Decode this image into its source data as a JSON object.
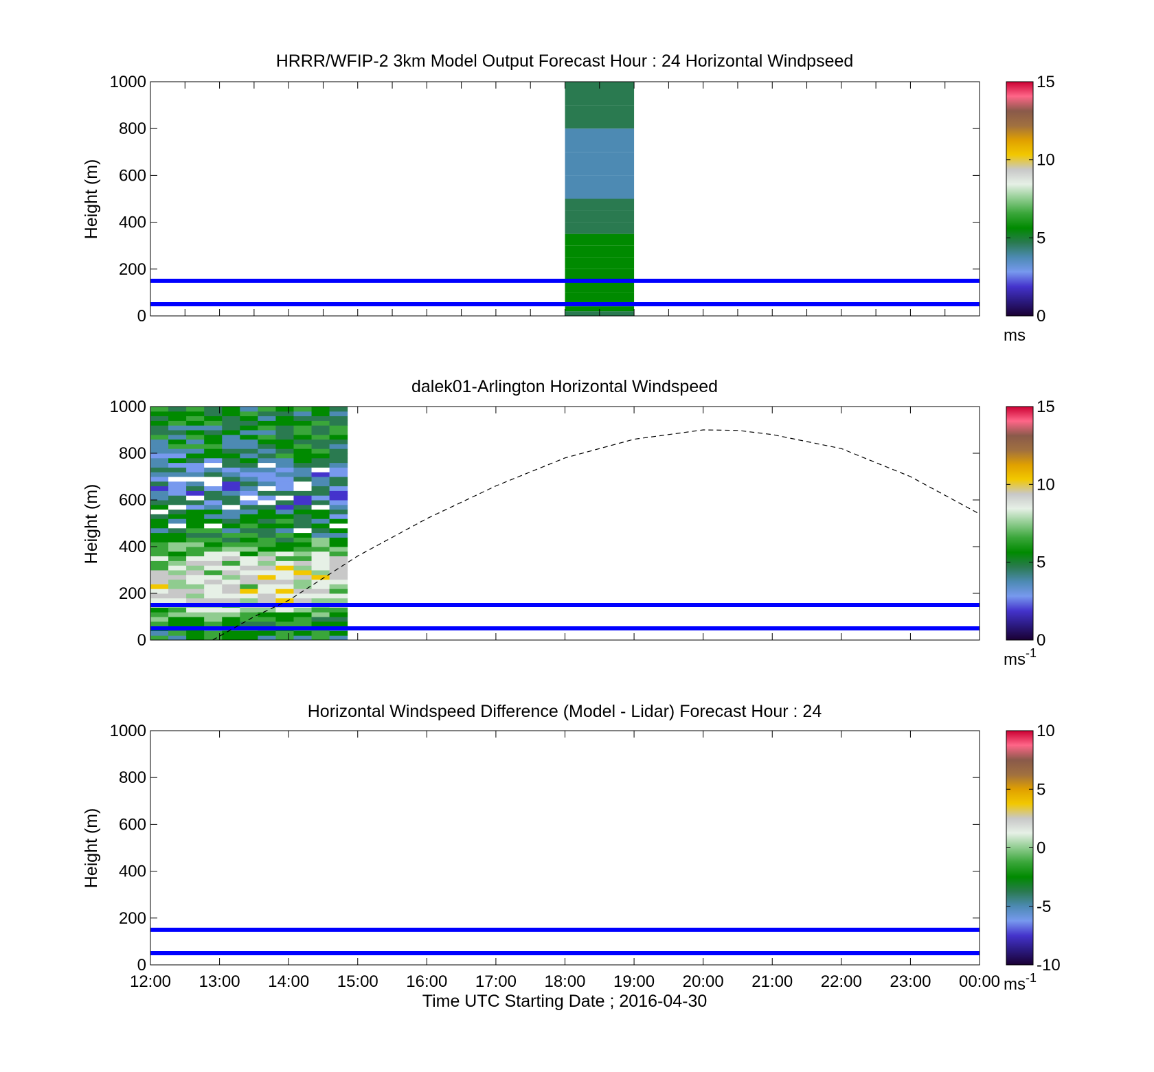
{
  "colors": {
    "reference_lines": "#0000ff",
    "speed_colormap": [
      "#1a0033",
      "#2b1a80",
      "#4433cc",
      "#7799ee",
      "#4d8ab3",
      "#2a7a50",
      "#008a00",
      "#3aa63a",
      "#8fcc8f",
      "#e6f0e6",
      "#c8c8c8",
      "#f2c800",
      "#e0a000",
      "#a07040",
      "#8a5a4a",
      "#ff6688",
      "#cc0033"
    ],
    "no_data": "#ffffff"
  },
  "chart_data": [
    {
      "type": "heatmap",
      "title": "HRRR/WFIP-2 3km Model Output   Forecast Hour : 24 Horizontal Windpseed",
      "ylabel": "Height (m)",
      "xlim": [
        "12:00",
        "00:00"
      ],
      "ylim": [
        0,
        1000
      ],
      "y_ticks": [
        "0",
        "200",
        "400",
        "600",
        "800",
        "1000"
      ],
      "x_ticks": [
        "12:00",
        "13:00",
        "14:00",
        "15:00",
        "16:00",
        "17:00",
        "18:00",
        "19:00",
        "20:00",
        "21:00",
        "22:00",
        "23:00",
        "00:00"
      ],
      "x_ticks_shown": false,
      "colorbar": {
        "ticks": [
          "0",
          "5",
          "10",
          "15"
        ],
        "range": [
          0,
          15
        ],
        "unit": "ms",
        "unit_sup": ""
      },
      "reference_lines_m": [
        50,
        150
      ],
      "data_block": {
        "time_start_h": 18.0,
        "time_end_h": 19.0,
        "heights_m": [
          20,
          40,
          60,
          100,
          200,
          250,
          300,
          350,
          400,
          450,
          500,
          600,
          700,
          800,
          900,
          1000
        ],
        "speed_ms": [
          5.0,
          5.6,
          5.5,
          5.5,
          5.6,
          5.5,
          5.4,
          5.3,
          5.1,
          4.9,
          4.8,
          3.8,
          3.3,
          3.6,
          4.8,
          4.8
        ]
      }
    },
    {
      "type": "heatmap",
      "title": "dalek01-Arlington  Horizontal Windspeed",
      "ylabel": "Height (m)",
      "xlim": [
        "12:00",
        "00:00"
      ],
      "ylim": [
        0,
        1000
      ],
      "y_ticks": [
        "0",
        "200",
        "400",
        "600",
        "800",
        "1000"
      ],
      "x_ticks": [
        "12:00",
        "13:00",
        "14:00",
        "15:00",
        "16:00",
        "17:00",
        "18:00",
        "19:00",
        "20:00",
        "21:00",
        "22:00",
        "23:00",
        "00:00"
      ],
      "x_ticks_shown": false,
      "colorbar": {
        "ticks": [
          "0",
          "5",
          "10",
          "15"
        ],
        "range": [
          0,
          15
        ],
        "unit": "ms",
        "unit_sup": "-1"
      },
      "reference_lines_m": [
        50,
        150
      ],
      "data_block": {
        "time_start_h": 12.0,
        "time_end_h": 14.85,
        "columns": 11,
        "height_step_m": 20,
        "speed_profile": [
          {
            "h": 0,
            "v": 4.8
          },
          {
            "h": 60,
            "v": 5.5
          },
          {
            "h": 120,
            "v": 7.2
          },
          {
            "h": 160,
            "v": 8.6
          },
          {
            "h": 260,
            "v": 8.6
          },
          {
            "h": 340,
            "v": 8.2
          },
          {
            "h": 400,
            "v": 6.6
          },
          {
            "h": 460,
            "v": 5.0
          },
          {
            "h": 540,
            "v": 4.4
          },
          {
            "h": 600,
            "v": 3.4
          },
          {
            "h": 700,
            "v": 3.2
          },
          {
            "h": 800,
            "v": 4.8
          },
          {
            "h": 900,
            "v": 5.2
          },
          {
            "h": 1000,
            "v": 5.2
          }
        ]
      },
      "dashed_curve": {
        "x_h": [
          12.9,
          13.5,
          14.0,
          15.0,
          16.0,
          17.0,
          18.0,
          19.0,
          20.0,
          20.5,
          21.0,
          22.0,
          23.0,
          24.0
        ],
        "y_m": [
          0,
          100,
          170,
          360,
          520,
          660,
          780,
          860,
          900,
          898,
          880,
          820,
          700,
          540
        ]
      }
    },
    {
      "type": "heatmap",
      "title": "Horizontal Windspeed Difference (Model - Lidar) Forecast Hour : 24",
      "xlabel": "Time UTC  Starting Date ; 2016-04-30",
      "ylabel": "Height (m)",
      "xlim": [
        "12:00",
        "00:00"
      ],
      "ylim": [
        0,
        1000
      ],
      "y_ticks": [
        "0",
        "200",
        "400",
        "600",
        "800",
        "1000"
      ],
      "x_ticks": [
        "12:00",
        "13:00",
        "14:00",
        "15:00",
        "16:00",
        "17:00",
        "18:00",
        "19:00",
        "20:00",
        "21:00",
        "22:00",
        "23:00",
        "00:00"
      ],
      "x_ticks_shown": true,
      "colorbar": {
        "ticks": [
          "-10",
          "-5",
          "0",
          "5",
          "10"
        ],
        "range": [
          -10,
          10
        ],
        "unit": "ms",
        "unit_sup": "-1"
      },
      "reference_lines_m": [
        50,
        150
      ],
      "data_block": null
    }
  ]
}
